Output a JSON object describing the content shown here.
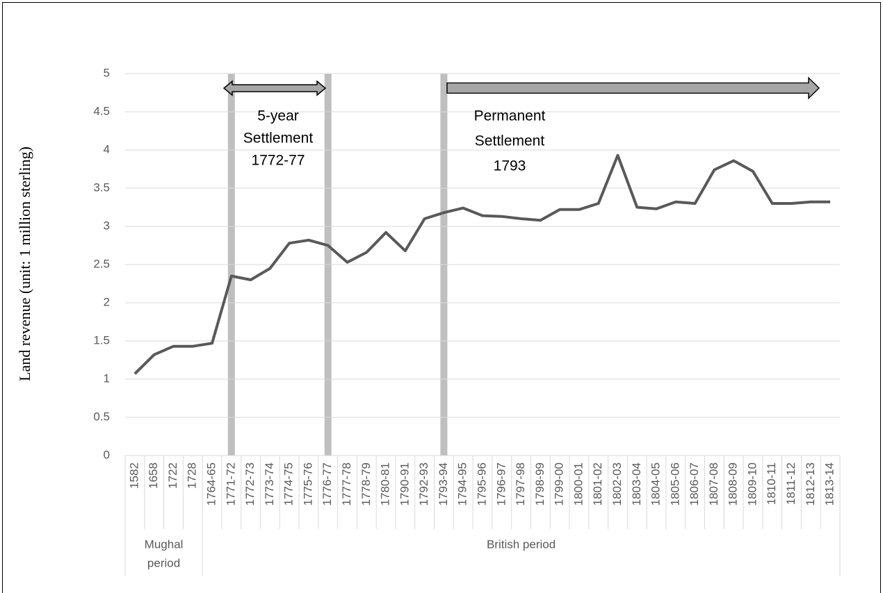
{
  "chart_data": {
    "type": "line",
    "y_axis_label": "Land revenue (unit: 1 million sterling)",
    "categories": [
      "1582",
      "1658",
      "1722",
      "1728",
      "1764-65",
      "1771-72",
      "1772-73",
      "1773-74",
      "1774-75",
      "1775-76",
      "1776-77",
      "1777-78",
      "1778-79",
      "1780-81",
      "1790-91",
      "1792-93",
      "1793-94",
      "1794-95",
      "1795-96",
      "1796-97",
      "1797-98",
      "1798-99",
      "1799-00",
      "1800-01",
      "1801-02",
      "1802-03",
      "1803-04",
      "1804-05",
      "1805-06",
      "1806-07",
      "1807-08",
      "1808-09",
      "1809-10",
      "1810-11",
      "1811-12",
      "1812-13",
      "1813-14"
    ],
    "values": [
      1.07,
      1.32,
      1.43,
      1.43,
      1.47,
      2.35,
      2.3,
      2.45,
      2.78,
      2.82,
      2.75,
      2.53,
      2.66,
      2.92,
      2.68,
      3.1,
      3.18,
      3.24,
      3.14,
      3.13,
      3.1,
      3.08,
      3.22,
      3.22,
      3.3,
      3.93,
      3.25,
      3.23,
      3.32,
      3.3,
      3.74,
      3.86,
      3.72,
      3.3,
      3.3,
      3.32,
      3.32
    ],
    "color": "#595959",
    "groups": [
      {
        "label": [
          "Mughal",
          "period"
        ]
      },
      {
        "label": [
          "British period"
        ]
      }
    ],
    "annotations": [
      [
        "5-year",
        "Settlement",
        "1772-77"
      ],
      [
        "Permanent",
        "Settlement",
        "1793"
      ]
    ],
    "ylim": [
      0,
      5
    ],
    "yticks": [
      0,
      0.5,
      1,
      1.5,
      2,
      2.5,
      3,
      3.5,
      4,
      4.5,
      5
    ],
    "grid": true
  }
}
